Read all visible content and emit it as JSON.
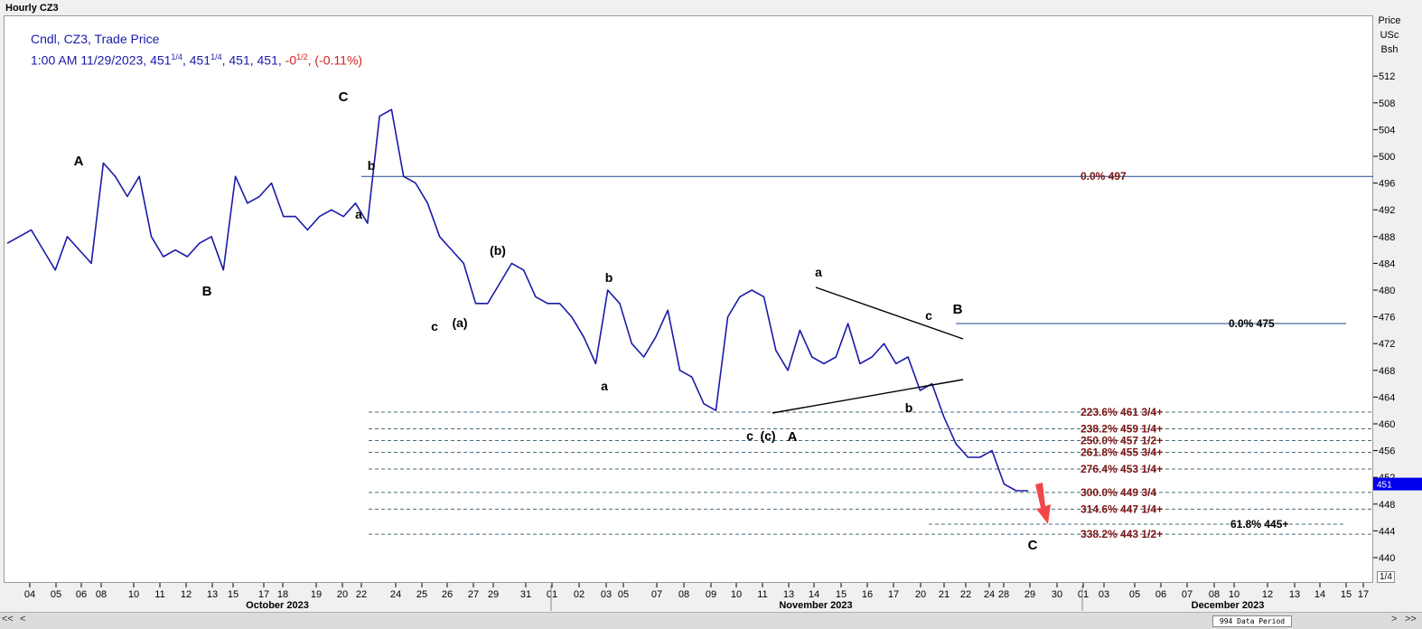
{
  "window": {
    "title": "Hourly CZ3"
  },
  "legend": {
    "line1": "Cndl, CZ3, Trade Price",
    "line2_time": "1:00 AM 11/29/2023, 451",
    "open_frac": "1/4",
    "high_int": ", 451",
    "high_frac": "1/4",
    "rest": ", 451, 451, ",
    "change_int": "-0",
    "change_frac": "1/2",
    "change_sep": ", ",
    "change_pct": "(-0.11%)"
  },
  "axis_header": [
    "Price",
    "USc",
    "Bsh"
  ],
  "price_marker": "451",
  "data_period": "994 Data Period",
  "page_indicator": "1/4",
  "scroll": {
    "left": "<<",
    "right": ">>",
    "left2": "<",
    "right2": ">"
  },
  "colors": {
    "series": "#1a1aa8",
    "fib": "#7a1414",
    "marker": "#0000ee",
    "arrow": "#f04848",
    "grid": "#555555"
  },
  "chart_data": {
    "type": "line",
    "title": "Hourly CZ3",
    "ylabel": "Price USc Bsh",
    "ylim": [
      438,
      516
    ],
    "y_ticks": [
      444,
      448,
      452,
      456,
      460,
      464,
      468,
      472,
      476,
      480,
      484,
      488,
      492,
      496,
      500,
      504,
      508,
      512,
      440
    ],
    "x_tick_labels": [
      "04",
      "05",
      "06",
      "08",
      "10",
      "11",
      "12",
      "13",
      "15",
      "17",
      "18",
      "19",
      "20",
      "22",
      "24",
      "25",
      "26",
      "27",
      "29",
      "31",
      "01",
      "02",
      "03",
      "05",
      "07",
      "08",
      "09",
      "10",
      "11",
      "13",
      "14",
      "15",
      "16",
      "17",
      "20",
      "21",
      "22",
      "24",
      "28",
      "29",
      "30",
      "01",
      "03",
      "05",
      "06",
      "07",
      "08",
      "10",
      "12",
      "13",
      "14",
      "15",
      "17"
    ],
    "x_month_labels": [
      "October 2023",
      "November 2023",
      "December 2023"
    ],
    "series": [
      {
        "name": "CZ3",
        "values": [
          487,
          488,
          489,
          486,
          483,
          488,
          486,
          484,
          499,
          497,
          494,
          497,
          488,
          485,
          486,
          485,
          487,
          488,
          483,
          497,
          493,
          494,
          496,
          491,
          491,
          489,
          491,
          492,
          491,
          493,
          490,
          506,
          507,
          497,
          496,
          493,
          488,
          486,
          484,
          478,
          478,
          481,
          484,
          483,
          479,
          478,
          478,
          476,
          473,
          469,
          480,
          478,
          472,
          470,
          473,
          477,
          468,
          467,
          463,
          462,
          476,
          479,
          480,
          479,
          471,
          468,
          474,
          470,
          469,
          470,
          475,
          469,
          470,
          472,
          469,
          470,
          465,
          466,
          461,
          457,
          455,
          455,
          456,
          451,
          450,
          450
        ]
      }
    ],
    "waves": [
      "A",
      "B",
      "C",
      "b",
      "a",
      "c",
      "(a)",
      "(b)",
      "b",
      "a",
      "c",
      "(c)",
      "A",
      "a",
      "c",
      "B",
      "b",
      "C"
    ],
    "fib_levels": [
      {
        "label": "0.0%",
        "value": 497
      },
      {
        "label": "0.0%",
        "value": 475
      },
      {
        "label": "223.6%",
        "value": "461 3/4+"
      },
      {
        "label": "238.2%",
        "value": "459 1/4+"
      },
      {
        "label": "250.0%",
        "value": "457 1/2+"
      },
      {
        "label": "261.8%",
        "value": "455 3/4+"
      },
      {
        "label": "276.4%",
        "value": "453 1/4+"
      },
      {
        "label": "300.0%",
        "value": "449 3/4"
      },
      {
        "label": "314.6%",
        "value": "447 1/4+"
      },
      {
        "label": "61.8%",
        "value": "445+"
      },
      {
        "label": "338.2%",
        "value": "443 1/2+"
      }
    ]
  }
}
